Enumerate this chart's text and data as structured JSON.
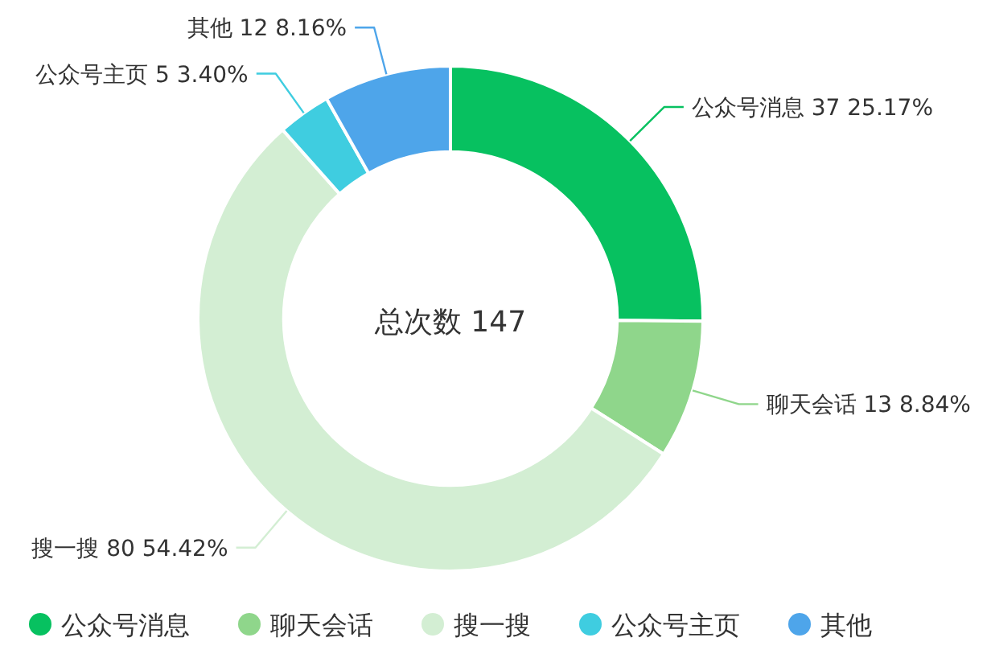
{
  "chart_data": {
    "type": "donut",
    "categories": [
      "公众号消息",
      "聊天会话",
      "搜一搜",
      "公众号主页",
      "其他"
    ],
    "values": [
      37,
      13,
      80,
      5,
      12
    ],
    "colors": [
      "#07c160",
      "#8fd68b",
      "#d3eed3",
      "#3fcde0",
      "#4ea5ea"
    ],
    "value_labels": [
      "37 25.17%",
      "13 8.84%",
      "80 54.42%",
      "5 3.40%",
      "12 8.16%"
    ],
    "annotations": [
      "总次数 147"
    ],
    "legend": "bottom"
  }
}
